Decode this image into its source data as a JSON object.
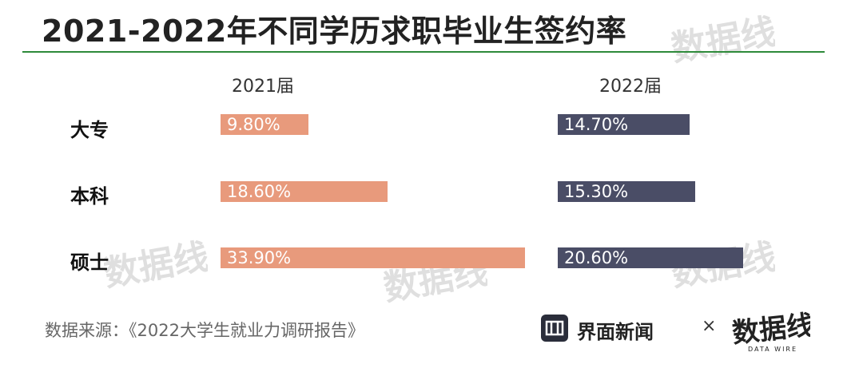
{
  "title": "2021-2022年不同学历求职毕业生签约率",
  "source": "数据来源：《2022大学生就业力调研报告》",
  "brand": {
    "name": "界面新闻",
    "separator": "×",
    "logo_text": "数据线",
    "logo_subtext": "DATA WIRE"
  },
  "colors": {
    "series_2021": "#e89a7c",
    "series_2022": "#4a4d66",
    "rule": "#2e8a3a"
  },
  "chart_data": {
    "type": "bar",
    "orientation": "horizontal",
    "categories": [
      "大专",
      "本科",
      "硕士"
    ],
    "series": [
      {
        "name": "2021届",
        "values": [
          9.8,
          18.6,
          33.9
        ],
        "labels": [
          "9.80%",
          "18.60%",
          "33.90%"
        ]
      },
      {
        "name": "2022届",
        "values": [
          14.7,
          15.3,
          20.6
        ],
        "labels": [
          "14.70%",
          "15.30%",
          "20.60%"
        ]
      }
    ],
    "unit": "%",
    "grid": false,
    "legend": "top"
  }
}
